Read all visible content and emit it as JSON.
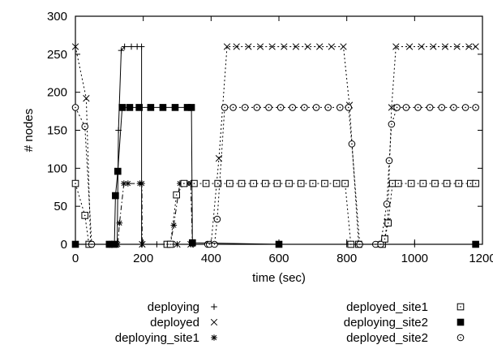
{
  "chart_data": {
    "type": "line",
    "xlabel": "time (sec)",
    "ylabel": "# nodes",
    "xlim": [
      0,
      1200
    ],
    "ylim": [
      0,
      300
    ],
    "xticks": [
      0,
      200,
      400,
      600,
      800,
      1000,
      1200
    ],
    "yticks": [
      0,
      50,
      100,
      150,
      200,
      250,
      300
    ],
    "grid": false,
    "legend_position": "bottom",
    "series": [
      {
        "name": "deploying",
        "marker": "plus",
        "dash": "solid",
        "points": [
          [
            0,
            0
          ],
          [
            95,
            0
          ],
          [
            110,
            0
          ],
          [
            123,
            0
          ],
          [
            127,
            150
          ],
          [
            135,
            255
          ],
          [
            145,
            260
          ],
          [
            165,
            260
          ],
          [
            182,
            260
          ],
          [
            195,
            260
          ],
          [
            195,
            0
          ],
          [
            240,
            0
          ],
          [
            280,
            0
          ],
          [
            300,
            0
          ],
          [
            340,
            0
          ],
          [
            400,
            0
          ],
          [
            600,
            0
          ],
          [
            800,
            0
          ],
          [
            900,
            0
          ],
          [
            1000,
            0
          ],
          [
            1180,
            0
          ]
        ]
      },
      {
        "name": "deployed",
        "marker": "x",
        "dash": "dotted",
        "points": [
          [
            0,
            260
          ],
          [
            32,
            192
          ],
          [
            45,
            0
          ],
          [
            100,
            0
          ],
          [
            120,
            0
          ],
          [
            197,
            0
          ],
          [
            280,
            0
          ],
          [
            300,
            0
          ],
          [
            340,
            0
          ],
          [
            400,
            0
          ],
          [
            423,
            113
          ],
          [
            447,
            260
          ],
          [
            475,
            260
          ],
          [
            510,
            260
          ],
          [
            545,
            260
          ],
          [
            580,
            260
          ],
          [
            615,
            260
          ],
          [
            650,
            260
          ],
          [
            685,
            260
          ],
          [
            720,
            260
          ],
          [
            755,
            260
          ],
          [
            790,
            260
          ],
          [
            808,
            183
          ],
          [
            835,
            0
          ],
          [
            900,
            0
          ],
          [
            912,
            8
          ],
          [
            920,
            30
          ],
          [
            932,
            180
          ],
          [
            945,
            260
          ],
          [
            985,
            260
          ],
          [
            1020,
            260
          ],
          [
            1055,
            260
          ],
          [
            1090,
            260
          ],
          [
            1125,
            260
          ],
          [
            1160,
            260
          ],
          [
            1180,
            260
          ]
        ]
      },
      {
        "name": "deploying_site1",
        "marker": "asterisk",
        "dash": "dashdot",
        "points": [
          [
            0,
            0
          ],
          [
            100,
            0
          ],
          [
            125,
            0
          ],
          [
            130,
            28
          ],
          [
            143,
            80
          ],
          [
            155,
            80
          ],
          [
            190,
            80
          ],
          [
            196,
            80
          ],
          [
            197,
            0
          ],
          [
            280,
            0
          ],
          [
            290,
            25
          ],
          [
            308,
            80
          ],
          [
            330,
            80
          ],
          [
            340,
            80
          ],
          [
            345,
            0
          ],
          [
            600,
            0
          ],
          [
            1180,
            0
          ]
        ]
      },
      {
        "name": "deployed_site1",
        "marker": "square-open",
        "dash": "dotted",
        "points": [
          [
            0,
            80
          ],
          [
            28,
            38
          ],
          [
            40,
            0
          ],
          [
            270,
            0
          ],
          [
            280,
            0
          ],
          [
            298,
            65
          ],
          [
            320,
            80
          ],
          [
            350,
            80
          ],
          [
            385,
            80
          ],
          [
            420,
            80
          ],
          [
            455,
            80
          ],
          [
            490,
            80
          ],
          [
            525,
            80
          ],
          [
            560,
            80
          ],
          [
            595,
            80
          ],
          [
            630,
            80
          ],
          [
            665,
            80
          ],
          [
            700,
            80
          ],
          [
            735,
            80
          ],
          [
            770,
            80
          ],
          [
            795,
            80
          ],
          [
            812,
            0
          ],
          [
            835,
            0
          ],
          [
            905,
            0
          ],
          [
            912,
            7
          ],
          [
            922,
            28
          ],
          [
            935,
            80
          ],
          [
            952,
            80
          ],
          [
            990,
            80
          ],
          [
            1025,
            80
          ],
          [
            1060,
            80
          ],
          [
            1095,
            80
          ],
          [
            1130,
            80
          ],
          [
            1165,
            80
          ],
          [
            1180,
            80
          ]
        ]
      },
      {
        "name": "deployed_site2",
        "marker": "circle-open",
        "dash": "dotted",
        "points": [
          [
            0,
            180
          ],
          [
            28,
            155
          ],
          [
            48,
            0
          ],
          [
            100,
            0
          ],
          [
            390,
            0
          ],
          [
            395,
            0
          ],
          [
            410,
            0
          ],
          [
            418,
            33
          ],
          [
            440,
            180
          ],
          [
            465,
            180
          ],
          [
            500,
            180
          ],
          [
            535,
            180
          ],
          [
            570,
            180
          ],
          [
            605,
            180
          ],
          [
            640,
            180
          ],
          [
            675,
            180
          ],
          [
            710,
            180
          ],
          [
            745,
            180
          ],
          [
            780,
            180
          ],
          [
            805,
            180
          ],
          [
            815,
            132
          ],
          [
            838,
            0
          ],
          [
            885,
            0
          ],
          [
            900,
            0
          ],
          [
            918,
            53
          ],
          [
            925,
            110
          ],
          [
            932,
            158
          ],
          [
            948,
            180
          ],
          [
            975,
            180
          ],
          [
            1010,
            180
          ],
          [
            1045,
            180
          ],
          [
            1080,
            180
          ],
          [
            1115,
            180
          ],
          [
            1150,
            180
          ],
          [
            1180,
            180
          ]
        ]
      },
      {
        "name": "deploying_site2",
        "marker": "square-filled",
        "dash": "solid",
        "points": [
          [
            0,
            0
          ],
          [
            100,
            0
          ],
          [
            115,
            0
          ],
          [
            118,
            64
          ],
          [
            125,
            96
          ],
          [
            138,
            180
          ],
          [
            160,
            180
          ],
          [
            188,
            180
          ],
          [
            222,
            180
          ],
          [
            258,
            180
          ],
          [
            294,
            180
          ],
          [
            330,
            180
          ],
          [
            342,
            180
          ],
          [
            345,
            2
          ],
          [
            600,
            0
          ],
          [
            1180,
            0
          ]
        ]
      }
    ],
    "legend_columns": [
      [
        "deploying",
        "deployed",
        "deploying_site1"
      ],
      [
        "deployed_site1",
        "deploying_site2",
        "deployed_site2"
      ]
    ]
  }
}
